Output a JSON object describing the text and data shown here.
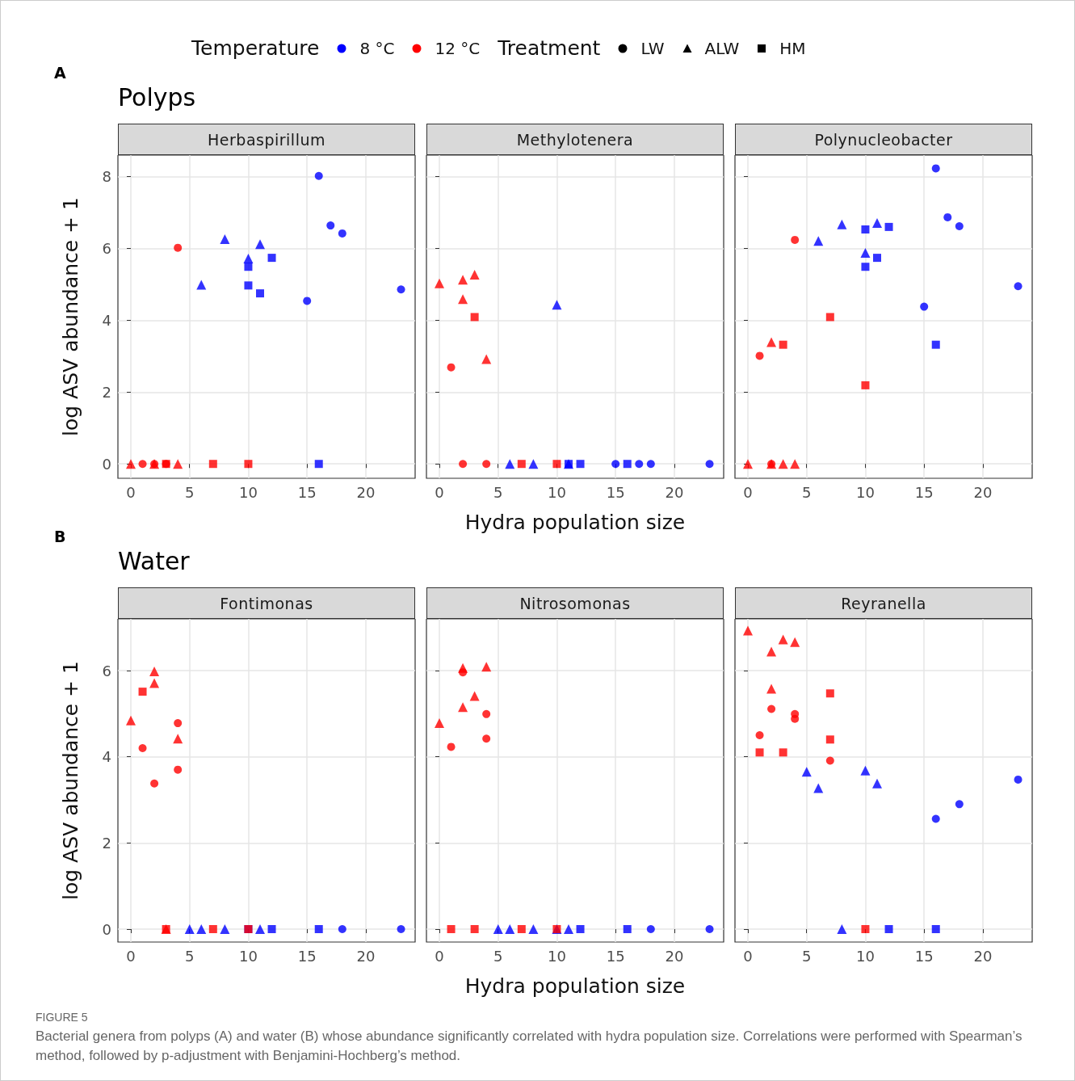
{
  "chart_data": [
    {
      "type": "other",
      "annotations": [
        "Temperature",
        "8 °C",
        "12 °C",
        "Treatment",
        "LW",
        "ALW",
        "HM"
      ],
      "colors": [
        "#0000ff",
        "#ff0000",
        "#000000",
        "#000000",
        "#000000"
      ]
    },
    {
      "type": "scatter",
      "title": "Herbaspirillum",
      "annotations": [
        "A",
        "Polyps"
      ],
      "ylabel": "log ASV abundance + 1",
      "xlim": [
        -1.1,
        24.2
      ],
      "xticks": [
        0,
        5,
        10,
        15,
        20
      ],
      "ylim": [
        -0.4,
        8.6
      ],
      "yticks": [
        0,
        2,
        4,
        6,
        8
      ],
      "grid": true,
      "series": [
        {
          "color": "#0000ff",
          "marker": "circle",
          "x": [
            15,
            16,
            17,
            18,
            23
          ],
          "values": [
            4.54,
            8.02,
            6.64,
            6.42,
            4.86
          ]
        },
        {
          "color": "#0000ff",
          "marker": "triangle",
          "x": [
            6,
            8,
            10,
            11
          ],
          "values": [
            4.99,
            6.26,
            5.72,
            6.12
          ]
        },
        {
          "color": "#0000ff",
          "marker": "square",
          "x": [
            10,
            10,
            11,
            12,
            16
          ],
          "values": [
            5.49,
            4.97,
            4.75,
            5.74,
            0
          ]
        },
        {
          "color": "#ff0000",
          "marker": "circle",
          "x": [
            1,
            2,
            3,
            4
          ],
          "values": [
            0,
            0,
            0,
            6.02
          ]
        },
        {
          "color": "#ff0000",
          "marker": "triangle",
          "x": [
            0,
            2,
            4
          ],
          "values": [
            0,
            0,
            0
          ]
        },
        {
          "color": "#ff0000",
          "marker": "square",
          "x": [
            3,
            7,
            10
          ],
          "values": [
            0,
            0,
            0
          ]
        }
      ]
    },
    {
      "type": "scatter",
      "title": "Methylotenera",
      "xlabel": "Hydra population size",
      "xlim": [
        -1.1,
        24.2
      ],
      "xticks": [
        0,
        5,
        10,
        15,
        20
      ],
      "ylim": [
        -0.4,
        8.6
      ],
      "yticks": [
        0,
        2,
        4,
        6,
        8
      ],
      "grid": true,
      "tick_labels": "x",
      "series": [
        {
          "color": "#0000ff",
          "marker": "circle",
          "x": [
            15,
            17,
            18,
            23
          ],
          "values": [
            0,
            0,
            0,
            0
          ]
        },
        {
          "color": "#0000ff",
          "marker": "triangle",
          "x": [
            6,
            8,
            10,
            11
          ],
          "values": [
            0,
            0,
            4.43,
            0
          ]
        },
        {
          "color": "#0000ff",
          "marker": "square",
          "x": [
            11,
            12,
            16
          ],
          "values": [
            0,
            0,
            0
          ]
        },
        {
          "color": "#ff0000",
          "marker": "circle",
          "x": [
            1,
            2,
            4
          ],
          "values": [
            2.69,
            0,
            0
          ]
        },
        {
          "color": "#ff0000",
          "marker": "triangle",
          "x": [
            0,
            2,
            2,
            3,
            4
          ],
          "values": [
            5.03,
            5.13,
            4.59,
            5.27,
            2.92
          ]
        },
        {
          "color": "#ff0000",
          "marker": "square",
          "x": [
            3,
            7,
            10
          ],
          "values": [
            4.09,
            0,
            0
          ]
        }
      ]
    },
    {
      "type": "scatter",
      "title": "Polynucleobacter",
      "xlim": [
        -1.1,
        24.2
      ],
      "xticks": [
        0,
        5,
        10,
        15,
        20
      ],
      "ylim": [
        -0.4,
        8.6
      ],
      "yticks": [
        0,
        2,
        4,
        6,
        8
      ],
      "grid": true,
      "tick_labels": "x",
      "series": [
        {
          "color": "#0000ff",
          "marker": "circle",
          "x": [
            15,
            16,
            17,
            18,
            23
          ],
          "values": [
            4.38,
            8.23,
            6.87,
            6.62,
            4.95
          ]
        },
        {
          "color": "#0000ff",
          "marker": "triangle",
          "x": [
            6,
            8,
            10,
            11
          ],
          "values": [
            6.21,
            6.67,
            5.88,
            6.71
          ]
        },
        {
          "color": "#0000ff",
          "marker": "square",
          "x": [
            10,
            10,
            11,
            12,
            16
          ],
          "values": [
            6.53,
            5.49,
            5.74,
            6.6,
            3.32
          ]
        },
        {
          "color": "#ff0000",
          "marker": "circle",
          "x": [
            1,
            2,
            4
          ],
          "values": [
            3.01,
            0,
            6.24
          ]
        },
        {
          "color": "#ff0000",
          "marker": "triangle",
          "x": [
            0,
            2,
            2,
            3,
            4
          ],
          "values": [
            0,
            3.39,
            0,
            0,
            0
          ]
        },
        {
          "color": "#ff0000",
          "marker": "square",
          "x": [
            3,
            7,
            10
          ],
          "values": [
            3.32,
            4.09,
            2.19
          ]
        }
      ]
    },
    {
      "type": "scatter",
      "title": "Fontimonas",
      "annotations": [
        "B",
        "Water"
      ],
      "ylabel": "log ASV abundance + 1",
      "xlim": [
        -1.1,
        24.2
      ],
      "xticks": [
        0,
        5,
        10,
        15,
        20
      ],
      "ylim": [
        -0.3,
        7.2
      ],
      "yticks": [
        0,
        2,
        4,
        6
      ],
      "grid": true,
      "series": [
        {
          "color": "#0000ff",
          "marker": "circle",
          "x": [
            18,
            23
          ],
          "values": [
            0,
            0
          ]
        },
        {
          "color": "#0000ff",
          "marker": "triangle",
          "x": [
            5,
            6,
            8,
            11
          ],
          "values": [
            0,
            0,
            0,
            0
          ]
        },
        {
          "color": "#0000ff",
          "marker": "square",
          "x": [
            10,
            12,
            16
          ],
          "values": [
            0,
            0,
            0
          ]
        },
        {
          "color": "#ff0000",
          "marker": "circle",
          "x": [
            1,
            2,
            4,
            4
          ],
          "values": [
            4.2,
            3.38,
            4.78,
            3.7
          ]
        },
        {
          "color": "#ff0000",
          "marker": "triangle",
          "x": [
            0,
            2,
            2,
            3,
            4
          ],
          "values": [
            4.84,
            5.98,
            5.71,
            0,
            4.42
          ]
        },
        {
          "color": "#ff0000",
          "marker": "square",
          "x": [
            1,
            3,
            7,
            10
          ],
          "values": [
            5.51,
            0,
            0,
            0
          ]
        }
      ]
    },
    {
      "type": "scatter",
      "title": "Nitrosomonas",
      "xlabel": "Hydra population size",
      "xlim": [
        -1.1,
        24.2
      ],
      "xticks": [
        0,
        5,
        10,
        15,
        20
      ],
      "ylim": [
        -0.3,
        7.2
      ],
      "yticks": [
        0,
        2,
        4,
        6
      ],
      "grid": true,
      "tick_labels": "x",
      "series": [
        {
          "color": "#0000ff",
          "marker": "circle",
          "x": [
            18,
            23
          ],
          "values": [
            0,
            0
          ]
        },
        {
          "color": "#0000ff",
          "marker": "triangle",
          "x": [
            5,
            6,
            8,
            10,
            11
          ],
          "values": [
            0,
            0,
            0,
            0,
            0
          ]
        },
        {
          "color": "#0000ff",
          "marker": "square",
          "x": [
            12,
            16
          ],
          "values": [
            0,
            0
          ]
        },
        {
          "color": "#ff0000",
          "marker": "circle",
          "x": [
            1,
            2,
            4,
            4
          ],
          "values": [
            4.23,
            5.96,
            4.99,
            4.42
          ]
        },
        {
          "color": "#ff0000",
          "marker": "triangle",
          "x": [
            0,
            2,
            2,
            3,
            4
          ],
          "values": [
            4.78,
            6.06,
            5.15,
            5.41,
            6.09
          ]
        },
        {
          "color": "#ff0000",
          "marker": "square",
          "x": [
            1,
            3,
            7,
            10
          ],
          "values": [
            0,
            0,
            0,
            0
          ]
        }
      ]
    },
    {
      "type": "scatter",
      "title": "Reyranella",
      "xlim": [
        -1.1,
        24.2
      ],
      "xticks": [
        0,
        5,
        10,
        15,
        20
      ],
      "ylim": [
        -0.3,
        7.2
      ],
      "yticks": [
        0,
        2,
        4,
        6
      ],
      "grid": true,
      "tick_labels": "x",
      "series": [
        {
          "color": "#0000ff",
          "marker": "circle",
          "x": [
            16,
            18,
            23
          ],
          "values": [
            2.56,
            2.9,
            3.47
          ]
        },
        {
          "color": "#0000ff",
          "marker": "triangle",
          "x": [
            5,
            6,
            8,
            10,
            11
          ],
          "values": [
            3.65,
            3.27,
            0,
            3.68,
            3.38
          ]
        },
        {
          "color": "#0000ff",
          "marker": "square",
          "x": [
            12,
            16
          ],
          "values": [
            0,
            0
          ]
        },
        {
          "color": "#ff0000",
          "marker": "circle",
          "x": [
            1,
            2,
            4,
            4,
            7
          ],
          "values": [
            4.5,
            5.11,
            4.99,
            4.88,
            3.91
          ]
        },
        {
          "color": "#ff0000",
          "marker": "triangle",
          "x": [
            0,
            2,
            2,
            3,
            4
          ],
          "values": [
            6.93,
            6.44,
            5.58,
            6.72,
            6.66
          ]
        },
        {
          "color": "#ff0000",
          "marker": "square",
          "x": [
            1,
            3,
            7,
            7,
            10
          ],
          "values": [
            4.1,
            4.1,
            5.47,
            4.4,
            0
          ]
        }
      ]
    },
    {
      "type": "other",
      "annotations": [
        "FIGURE 5",
        "Bacterial genera from polyps (A) and water (B) whose abundance significantly correlated with hydra population size. Correlations were performed with Spearman’s method, followed by p-adjustment with Benjamini-Hochberg’s method."
      ]
    }
  ]
}
